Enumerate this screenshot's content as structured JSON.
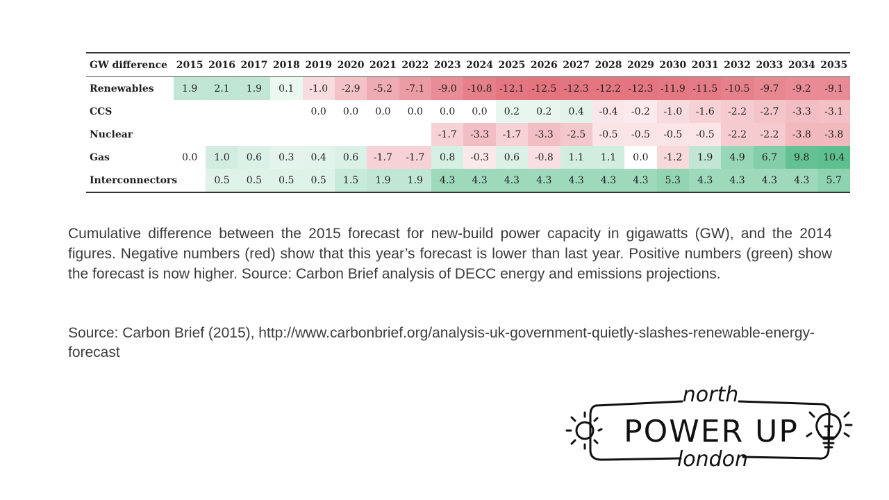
{
  "table": {
    "header_label": "GW difference",
    "years": [
      "2015",
      "2016",
      "2017",
      "2018",
      "2019",
      "2020",
      "2021",
      "2022",
      "2023",
      "2024",
      "2025",
      "2026",
      "2027",
      "2028",
      "2029",
      "2030",
      "2031",
      "2032",
      "2033",
      "2034",
      "2035"
    ],
    "rows": [
      {
        "name": "Renewables",
        "values": [
          "1.9",
          "2.1",
          "1.9",
          "0.1",
          "-1.0",
          "-2.9",
          "-5.2",
          "-7.1",
          "-9.0",
          "-10.8",
          "-12.1",
          "-12.5",
          "-12.3",
          "-12.2",
          "-12.3",
          "-11.9",
          "-11.5",
          "-10.5",
          "-9.7",
          "-9.2",
          "-9.1"
        ]
      },
      {
        "name": "CCS",
        "values": [
          "",
          "",
          "",
          "",
          "0.0",
          "0.0",
          "0.0",
          "0.0",
          "0.0",
          "0.0",
          "0.2",
          "0.2",
          "0.4",
          "-0.4",
          "-0.2",
          "-1.0",
          "-1.6",
          "-2.2",
          "-2.7",
          "-3.3",
          "-3.1"
        ]
      },
      {
        "name": "Nuclear",
        "values": [
          "",
          "",
          "",
          "",
          "",
          "",
          "",
          "",
          "-1.7",
          "-3.3",
          "-1.7",
          "-3.3",
          "-2.5",
          "-0.5",
          "-0.5",
          "-0.5",
          "-0.5",
          "-2.2",
          "-2.2",
          "-3.8",
          "-3.8"
        ]
      },
      {
        "name": "Gas",
        "values": [
          "0.0",
          "1.0",
          "0.6",
          "0.3",
          "0.4",
          "0.6",
          "-1.7",
          "-1.7",
          "0.8",
          "-0.3",
          "0.6",
          "-0.8",
          "1.1",
          "1.1",
          "0.0",
          "-1.2",
          "1.9",
          "4.9",
          "6.7",
          "9.8",
          "10.4"
        ]
      },
      {
        "name": "Interconnectors",
        "values": [
          "",
          "0.5",
          "0.5",
          "0.5",
          "0.5",
          "1.5",
          "1.9",
          "1.9",
          "4.3",
          "4.3",
          "4.3",
          "4.3",
          "4.3",
          "4.3",
          "4.3",
          "5.3",
          "4.3",
          "4.3",
          "4.3",
          "4.3",
          "5.7"
        ]
      }
    ],
    "colors": {
      "negative": "#e06470",
      "positive": "#4cb982"
    }
  },
  "caption": "Cumulative difference between the 2015 forecast for new-build power capacity in gigawatts (GW), and the 2014 figures. Negative numbers (red) show that this year’s forecast is lower than last year. Positive numbers (green) show the forecast is now higher. Source: Carbon Brief analysis of DECC energy and emissions projections.",
  "source": "Source: Carbon Brief (2015), http://www.carbonbrief.org/analysis-uk-government-quietly-slashes-renewable-energy-forecast",
  "logo": {
    "top": "north",
    "main": "POWER UP",
    "bottom": "london",
    "icons": [
      "sun-icon",
      "lightbulb-icon"
    ]
  },
  "chart_data": {
    "type": "heatmap",
    "x": [
      "2015",
      "2016",
      "2017",
      "2018",
      "2019",
      "2020",
      "2021",
      "2022",
      "2023",
      "2024",
      "2025",
      "2026",
      "2027",
      "2028",
      "2029",
      "2030",
      "2031",
      "2032",
      "2033",
      "2034",
      "2035"
    ],
    "y": [
      "Renewables",
      "CCS",
      "Nuclear",
      "Gas",
      "Interconnectors"
    ],
    "units": "GW difference"
  }
}
